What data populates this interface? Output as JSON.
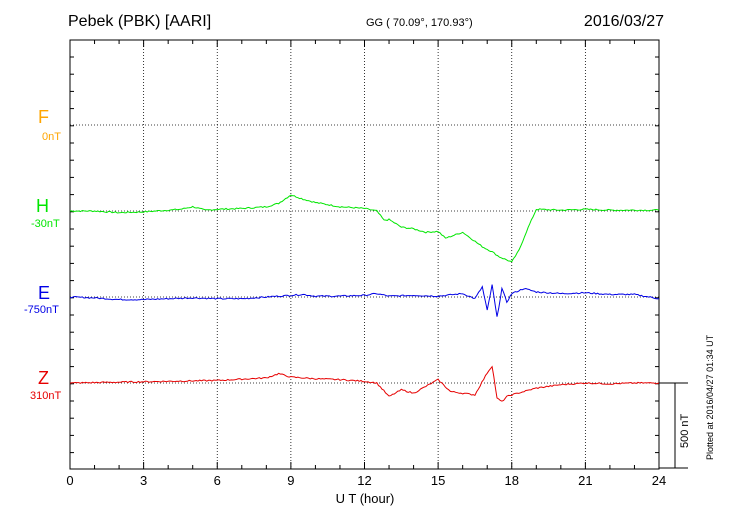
{
  "header": {
    "station": "Pebek (PBK)  [AARI]",
    "coords": "GG ( 70.09°, 170.93°)",
    "date": "2016/03/27"
  },
  "footer": {
    "plotted": "Plotted at 2016/04/27 01:34  UT",
    "scale_label": "500 nT"
  },
  "chart_data": {
    "type": "line",
    "xlabel": "U T (hour)",
    "xlim": [
      0,
      24
    ],
    "xticks": [
      "0",
      "3",
      "6",
      "9",
      "12",
      "15",
      "18",
      "21",
      "24"
    ],
    "scale_bar_nT": 500,
    "grid": true,
    "series": [
      {
        "name": "F",
        "offset_label": "0nT",
        "color": "#ffa500",
        "x": [],
        "y": []
      },
      {
        "name": "H",
        "offset_label": "-30nT",
        "color": "#00e600",
        "x": [
          0,
          1,
          2,
          3,
          4,
          4.5,
          5,
          5.5,
          6,
          7,
          8,
          8.5,
          9,
          9.5,
          10,
          11,
          12,
          12.5,
          12.8,
          13,
          13.5,
          14,
          14.5,
          15,
          15.3,
          16,
          16.8,
          17.2,
          17.5,
          18,
          18.3,
          18.6,
          19,
          20,
          21,
          22,
          23,
          24
        ],
        "y": [
          0,
          0,
          -10,
          -5,
          5,
          10,
          25,
          5,
          10,
          15,
          25,
          45,
          95,
          70,
          50,
          25,
          15,
          0,
          -55,
          -50,
          -95,
          -105,
          -125,
          -120,
          -160,
          -125,
          -210,
          -240,
          -270,
          -300,
          -230,
          -120,
          10,
          5,
          10,
          5,
          5,
          5
        ]
      },
      {
        "name": "E",
        "offset_label": "-750nT",
        "color": "#0000e6",
        "x": [
          0,
          1,
          2,
          3,
          4,
          5,
          6,
          7,
          8,
          9,
          9.5,
          10,
          11,
          12,
          12.5,
          13,
          14,
          15,
          16,
          16.5,
          16.8,
          17,
          17.2,
          17.4,
          17.6,
          17.8,
          18,
          18.5,
          19,
          20,
          21,
          22,
          23,
          24
        ],
        "y": [
          0,
          -5,
          -15,
          -15,
          -10,
          -5,
          -10,
          -10,
          0,
          10,
          15,
          5,
          5,
          10,
          20,
          5,
          10,
          5,
          20,
          -10,
          60,
          -80,
          70,
          -120,
          50,
          -30,
          20,
          50,
          30,
          20,
          25,
          15,
          15,
          -10
        ]
      },
      {
        "name": "Z",
        "offset_label": "310nT",
        "color": "#e60000",
        "x": [
          0,
          2,
          4,
          6,
          8,
          8.5,
          9,
          9.5,
          10,
          11,
          12,
          12.5,
          13,
          13.5,
          14,
          15,
          15.5,
          16,
          16.5,
          17,
          17.2,
          17.4,
          17.6,
          17.8,
          18,
          19,
          20,
          21,
          22,
          23,
          24
        ],
        "y": [
          0,
          5,
          10,
          15,
          30,
          55,
          35,
          30,
          25,
          20,
          10,
          0,
          -80,
          -40,
          -60,
          20,
          -50,
          -60,
          -70,
          60,
          100,
          -90,
          -110,
          -80,
          -70,
          -30,
          -10,
          0,
          -5,
          0,
          0
        ]
      }
    ]
  }
}
